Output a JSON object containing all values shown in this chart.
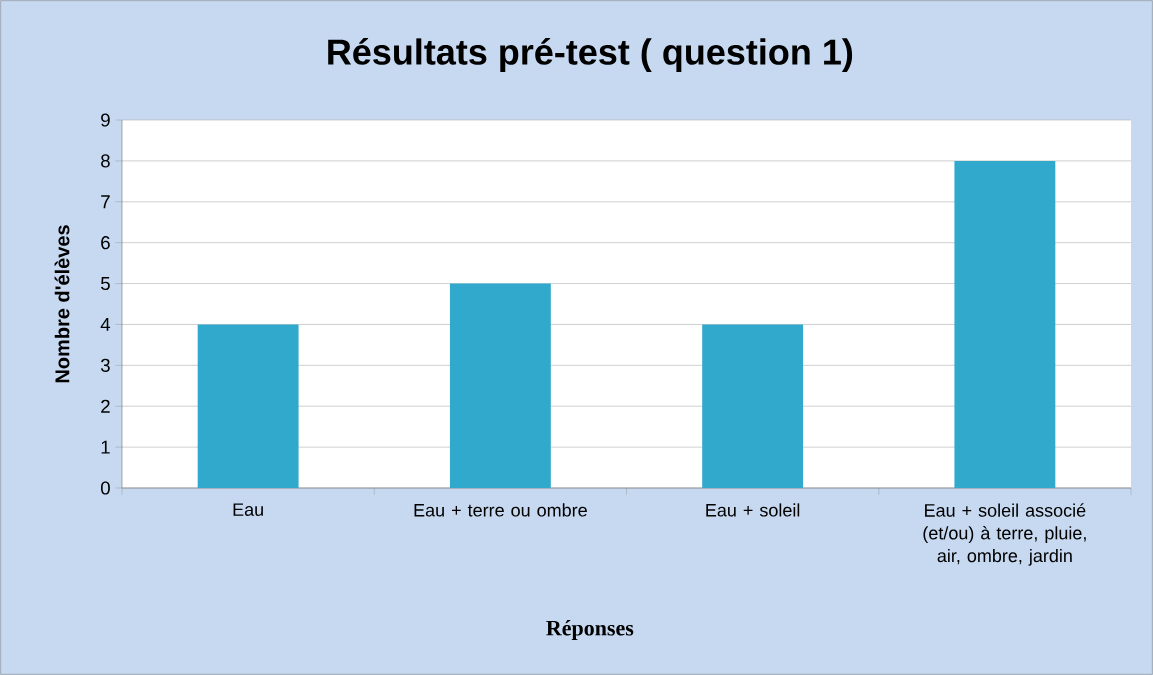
{
  "chart_data": {
    "type": "bar",
    "title": "Résultats pré-test ( question 1)",
    "xlabel": "Réponses",
    "ylabel": "Nombre d'élèves",
    "categories": [
      "Eau",
      "Eau + terre ou ombre",
      "Eau + soleil",
      "Eau + soleil associé (et/ou) à terre, pluie, air, ombre, jardin"
    ],
    "values": [
      4,
      5,
      4,
      8
    ],
    "color": "#31a9cc",
    "ylim": [
      0,
      9
    ],
    "yticks": [
      0,
      1,
      2,
      3,
      4,
      5,
      6,
      7,
      8,
      9
    ],
    "grid": "y"
  }
}
